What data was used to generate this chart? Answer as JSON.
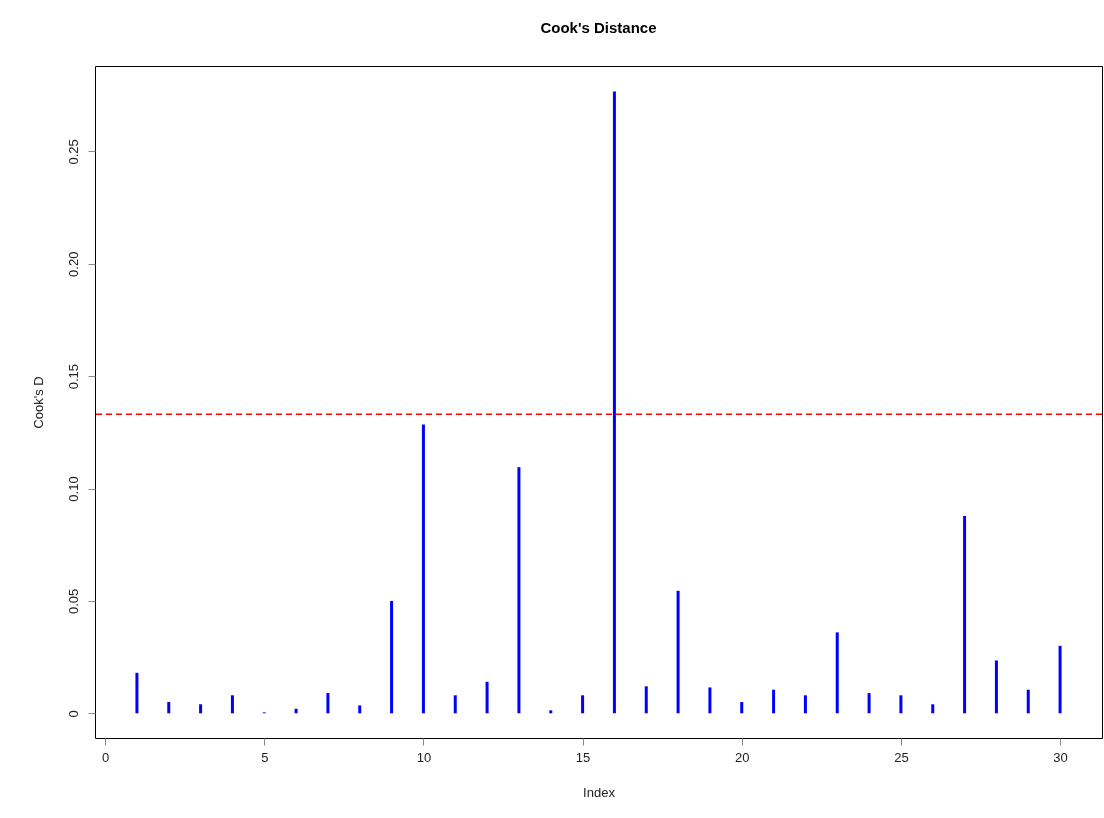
{
  "chart_data": {
    "type": "bar",
    "title": "Cook's Distance",
    "xlabel": "Index",
    "ylabel": "Cook's D",
    "x": [
      1,
      2,
      3,
      4,
      5,
      6,
      7,
      8,
      9,
      10,
      11,
      12,
      13,
      14,
      15,
      16,
      17,
      18,
      19,
      20,
      21,
      22,
      23,
      24,
      25,
      26,
      27,
      28,
      29,
      30
    ],
    "values": [
      0.018,
      0.005,
      0.004,
      0.008,
      0.0004,
      0.002,
      0.009,
      0.0035,
      0.05,
      0.1285,
      0.008,
      0.014,
      0.1095,
      0.0013,
      0.008,
      0.2766,
      0.012,
      0.0545,
      0.0115,
      0.005,
      0.0105,
      0.008,
      0.036,
      0.009,
      0.008,
      0.004,
      0.0878,
      0.0235,
      0.0105,
      0.03
    ],
    "color": "#0000ff",
    "xlim": [
      -0.16,
      31.16
    ],
    "xticks": [
      0,
      5,
      10,
      15,
      20,
      25,
      30
    ],
    "ylim": [
      -0.011,
      0.288
    ],
    "yticks": [
      0,
      {
        "value": 0.05,
        "label": "0.05"
      },
      {
        "value": 0.1,
        "label": "0.10"
      },
      {
        "value": 0.15,
        "label": "0.15"
      },
      {
        "value": 0.2,
        "label": "0.20"
      },
      {
        "value": 0.25,
        "label": "0.25"
      }
    ],
    "ref_lines": [
      {
        "axis": "y",
        "value": 0.133,
        "color": "#ff0000",
        "line_style": "dashed"
      }
    ],
    "grid": false
  }
}
